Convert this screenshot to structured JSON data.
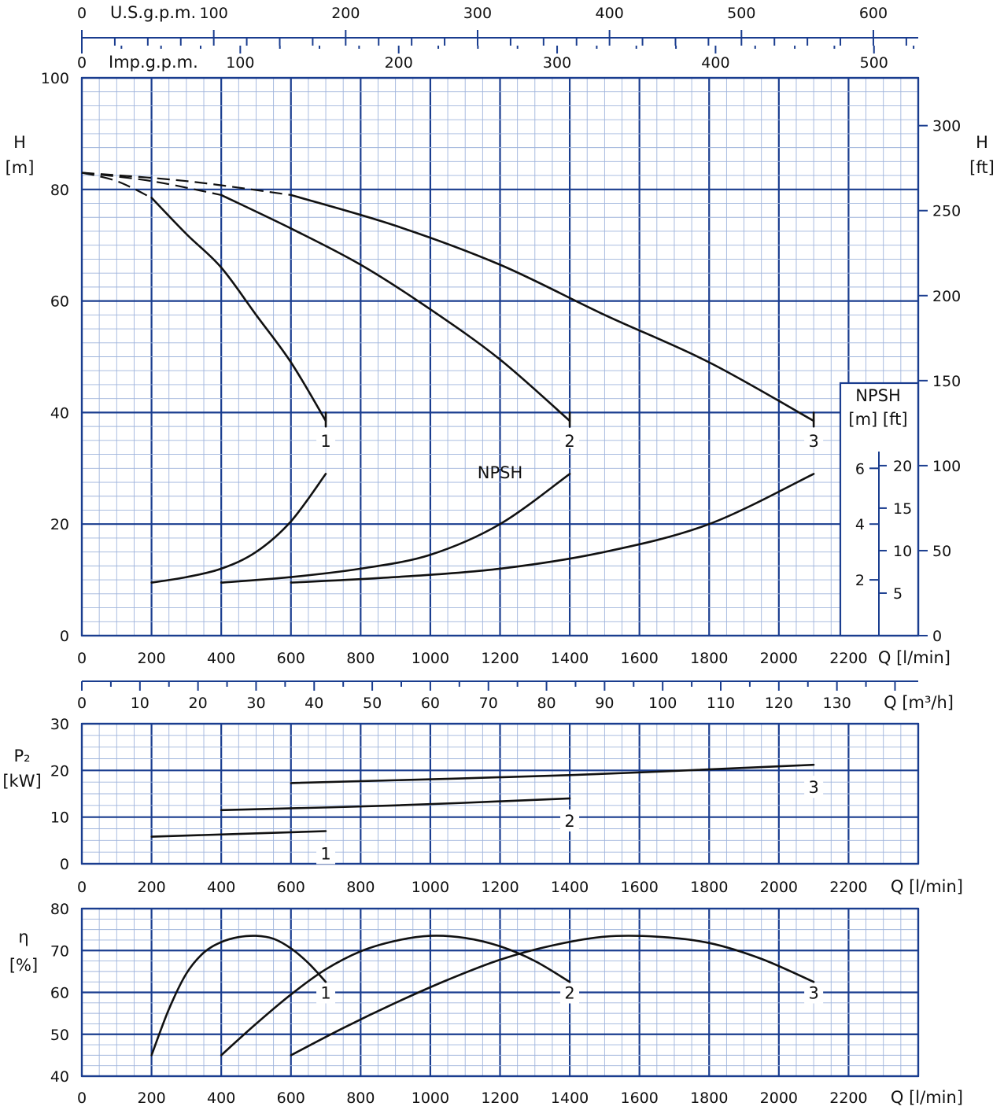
{
  "chart_data": [
    {
      "type": "line",
      "panel": "head_npsh",
      "xlabel": "Q [l/min]",
      "x_ticks": [
        0,
        200,
        400,
        600,
        800,
        1000,
        1200,
        1400,
        1600,
        1800,
        2000,
        2200
      ],
      "xlim": [
        0,
        2400
      ],
      "ylabel_left": "H",
      "ylabel_left_unit": "[m]",
      "ylim": [
        0,
        100
      ],
      "y_ticks": [
        0,
        20,
        40,
        60,
        80,
        100
      ],
      "ylabel_right": "H",
      "ylabel_right_unit": "[ft]",
      "y_right_ticks": [
        0,
        50,
        100,
        150,
        200,
        250,
        300
      ],
      "top_axis_usgpm_label": "U.S.g.p.m.",
      "top_axis_usgpm_ticks": [
        0,
        100,
        200,
        300,
        400,
        500,
        600
      ],
      "top_axis_impgpm_label": "Imp.g.p.m.",
      "top_axis_impgpm_ticks": [
        0,
        100,
        200,
        300,
        400,
        500
      ],
      "npsh_box_title": "NPSH",
      "npsh_box_units": "[m]  [ft]",
      "npsh_m_ticks": [
        2,
        4,
        6
      ],
      "npsh_ft_ticks": [
        5,
        10,
        15,
        20
      ],
      "npsh_annotation": "NPSH",
      "series": [
        {
          "name": "1",
          "x": [
            0,
            100,
            200,
            300,
            400,
            500,
            600,
            700
          ],
          "y": [
            83,
            81.5,
            78.5,
            72,
            66,
            57.5,
            49,
            38.5
          ],
          "dashed_until": 200
        },
        {
          "name": "2",
          "x": [
            0,
            200,
            400,
            600,
            800,
            1000,
            1200,
            1400
          ],
          "y": [
            83,
            81.5,
            79,
            73,
            66.5,
            58.5,
            49.5,
            38.5
          ],
          "dashed_until": 400
        },
        {
          "name": "3",
          "x": [
            0,
            300,
            600,
            900,
            1200,
            1500,
            1800,
            2100
          ],
          "y": [
            83,
            81.5,
            79,
            73.5,
            66.5,
            57.5,
            49,
            38.5
          ],
          "dashed_until": 600
        }
      ],
      "npsh_series": [
        {
          "name": "1",
          "x": [
            200,
            300,
            400,
            500,
            600,
            700
          ],
          "npsh_m": [
            1.9,
            2.1,
            2.4,
            3.0,
            4.1,
            5.8
          ]
        },
        {
          "name": "2",
          "x": [
            400,
            600,
            800,
            1000,
            1200,
            1400
          ],
          "npsh_m": [
            1.9,
            2.1,
            2.4,
            2.9,
            4.0,
            5.8
          ]
        },
        {
          "name": "3",
          "x": [
            600,
            900,
            1200,
            1500,
            1800,
            2100
          ],
          "npsh_m": [
            1.9,
            2.1,
            2.4,
            3.0,
            4.0,
            5.8
          ]
        }
      ]
    },
    {
      "type": "line",
      "panel": "flow_m3h",
      "xlabel": "Q [m³/h]",
      "x_ticks": [
        0,
        10,
        20,
        30,
        40,
        50,
        60,
        70,
        80,
        90,
        100,
        110,
        120,
        130
      ]
    },
    {
      "type": "line",
      "panel": "power",
      "xlabel": "Q [l/min]",
      "x_ticks": [
        0,
        200,
        400,
        600,
        800,
        1000,
        1200,
        1400,
        1600,
        1800,
        2000,
        2200
      ],
      "ylabel": "P₂",
      "ylabel_unit": "[kW]",
      "ylim": [
        0,
        30
      ],
      "y_ticks": [
        0,
        10,
        20,
        30
      ],
      "series": [
        {
          "name": "1",
          "x": [
            200,
            700
          ],
          "y": [
            5.8,
            7.0
          ]
        },
        {
          "name": "2",
          "x": [
            400,
            900,
            1400
          ],
          "y": [
            11.5,
            12.5,
            14.0
          ]
        },
        {
          "name": "3",
          "x": [
            600,
            1400,
            2100
          ],
          "y": [
            17.3,
            19.0,
            21.2
          ]
        }
      ]
    },
    {
      "type": "line",
      "panel": "efficiency",
      "xlabel": "Q [l/min]",
      "x_ticks": [
        0,
        200,
        400,
        600,
        800,
        1000,
        1200,
        1400,
        1600,
        1800,
        2000,
        2200
      ],
      "ylabel": "η",
      "ylabel_unit": "[%]",
      "ylim": [
        40,
        80
      ],
      "y_ticks": [
        40,
        50,
        60,
        70,
        80
      ],
      "series": [
        {
          "name": "1",
          "x": [
            200,
            250,
            300,
            350,
            400,
            450,
            500,
            550,
            600,
            650,
            700
          ],
          "y": [
            45,
            56,
            64.5,
            69.5,
            72,
            73.2,
            73.5,
            72.8,
            70.5,
            67,
            62.5
          ]
        },
        {
          "name": "2",
          "x": [
            400,
            500,
            600,
            700,
            800,
            900,
            1000,
            1100,
            1200,
            1300,
            1400
          ],
          "y": [
            45,
            52.5,
            59.5,
            65.5,
            69.8,
            72.3,
            73.5,
            73,
            71,
            67.5,
            62.5
          ]
        },
        {
          "name": "3",
          "x": [
            600,
            750,
            900,
            1050,
            1200,
            1350,
            1500,
            1650,
            1800,
            1950,
            2100
          ],
          "y": [
            45,
            51.5,
            57.5,
            63,
            67.8,
            71.2,
            73.3,
            73.3,
            71.8,
            68,
            62.5
          ]
        }
      ]
    }
  ]
}
